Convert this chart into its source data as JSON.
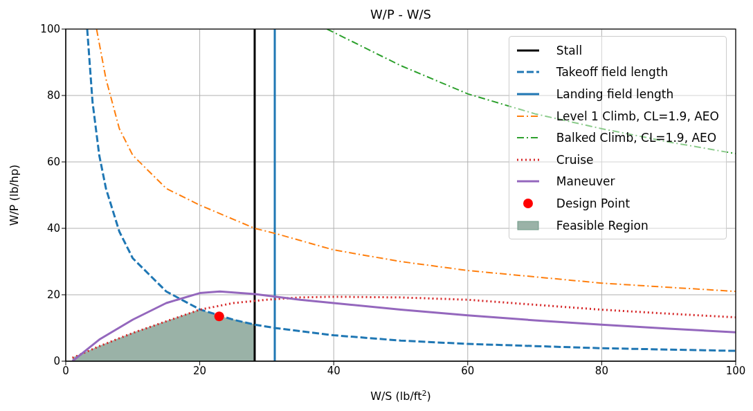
{
  "chart_data": {
    "type": "line",
    "title": "W/P - W/S",
    "xlabel": "W/S (lb/ft$^{2}$)",
    "ylabel": "W/P (lb/hp)",
    "xlim": [
      0,
      100
    ],
    "xticks": [
      0,
      20,
      40,
      60,
      80,
      100
    ],
    "ylim": [
      0,
      100
    ],
    "yticks": [
      0,
      20,
      40,
      60,
      80,
      100
    ],
    "grid": true,
    "legend": "top right",
    "series": [
      {
        "name": "Stall",
        "color": "#000000",
        "line_style": "solid",
        "x": [
          28.2,
          28.2
        ],
        "values": [
          0,
          100
        ]
      },
      {
        "name": "Takeoff field length",
        "color": "#1f77b4",
        "line_style": "dashed",
        "x": [
          3.2,
          4,
          5,
          6,
          8,
          10,
          15,
          20,
          25,
          28.2,
          31.2,
          40,
          50,
          60,
          80,
          100
        ],
        "values": [
          100,
          78,
          62,
          52,
          39,
          31,
          21,
          15.6,
          12.5,
          11,
          10,
          7.8,
          6.2,
          5.2,
          3.9,
          3.1
        ]
      },
      {
        "name": "Landing field length",
        "color": "#1f77b4",
        "line_style": "solid",
        "x": [
          31.2,
          31.2
        ],
        "values": [
          0,
          100
        ]
      },
      {
        "name": "Level 1 Climb, CL=1.9, AEO",
        "color": "#ff7f0e",
        "line_style": "dashdot",
        "x": [
          4.6,
          6,
          8,
          10,
          15,
          20,
          28.2,
          31.2,
          40,
          50,
          60,
          80,
          100
        ],
        "values": [
          100,
          85,
          70,
          62,
          52,
          47,
          40,
          38.5,
          33.5,
          30,
          27.3,
          23.5,
          21
        ]
      },
      {
        "name": "Balked Climb, CL=1.9, AEO",
        "color": "#2ca02c",
        "line_style": "dashdot",
        "x": [
          39,
          50,
          60,
          70,
          80,
          90,
          100
        ],
        "values": [
          100,
          89,
          80.5,
          74.5,
          70,
          66,
          62.5
        ]
      },
      {
        "name": "Cruise",
        "color": "#d62728",
        "line_style": "dotted",
        "x": [
          1,
          5,
          10,
          15,
          20,
          25,
          30,
          35,
          40,
          50,
          60,
          70,
          80,
          90,
          100
        ],
        "values": [
          1,
          4.5,
          8.5,
          12,
          15.5,
          17.5,
          18.5,
          19.2,
          19.4,
          19.2,
          18.5,
          17,
          15.5,
          14.3,
          13.2
        ]
      },
      {
        "name": "Maneuver",
        "color": "#9467bd",
        "line_style": "solid",
        "x": [
          1,
          5,
          10,
          15,
          20,
          23,
          28.2,
          35,
          40,
          50,
          60,
          70,
          80,
          90,
          100
        ],
        "values": [
          0,
          6.5,
          12.5,
          17.5,
          20.5,
          21,
          20.2,
          18.5,
          17.5,
          15.5,
          13.8,
          12.3,
          11,
          9.8,
          8.7
        ]
      },
      {
        "name": "Design Point",
        "type": "scatter",
        "color": "#ff0000",
        "marker": "circle",
        "x": [
          22.9
        ],
        "values": [
          13.5
        ]
      },
      {
        "name": "Feasible Region",
        "type": "area",
        "color": "#9ab2a7",
        "x": [
          1,
          5,
          10,
          15,
          20,
          22.9,
          25,
          28.2
        ],
        "values": [
          1,
          4.5,
          8.5,
          12,
          15.5,
          13.5,
          12.5,
          11
        ]
      }
    ]
  }
}
